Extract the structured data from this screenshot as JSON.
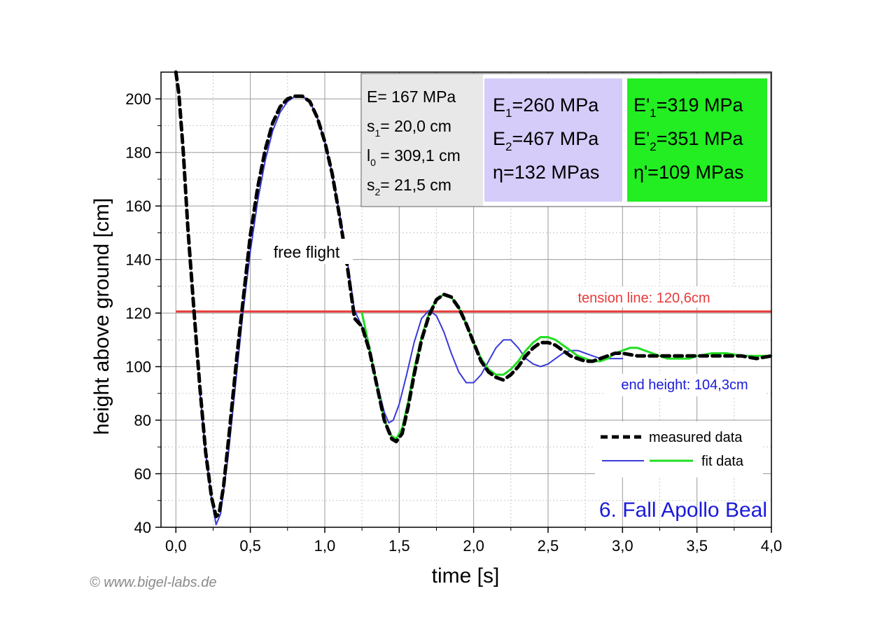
{
  "chart_data": {
    "type": "line",
    "title": "6. Fall Apollo Beal",
    "xlabel": "time [s]",
    "ylabel": "height above ground [cm]",
    "xlim": [
      -0.1,
      4.0
    ],
    "ylim": [
      40,
      210
    ],
    "grid": true,
    "x_ticks": [
      "0,0",
      "0,5",
      "1,0",
      "1,5",
      "2,0",
      "2,5",
      "3,0",
      "3,5",
      "4,0"
    ],
    "y_ticks": [
      "40",
      "60",
      "80",
      "100",
      "120",
      "140",
      "160",
      "180",
      "200"
    ],
    "tension_line": {
      "label": "tension line: 120,6cm",
      "value": 120.6,
      "color": "#e83a3a"
    },
    "end_height": {
      "label": "end height: 104,3cm",
      "value": 104.3,
      "color": "#1a1adb"
    },
    "free_flight_label": "free flight",
    "series": [
      {
        "name": "measured data",
        "style": "dashed",
        "color": "#000000",
        "points": [
          [
            0.0,
            210
          ],
          [
            0.02,
            202
          ],
          [
            0.05,
            180
          ],
          [
            0.08,
            152
          ],
          [
            0.12,
            122
          ],
          [
            0.16,
            93
          ],
          [
            0.2,
            68
          ],
          [
            0.24,
            51
          ],
          [
            0.27,
            44
          ],
          [
            0.29,
            45
          ],
          [
            0.32,
            55
          ],
          [
            0.36,
            76
          ],
          [
            0.41,
            104
          ],
          [
            0.46,
            129
          ],
          [
            0.5,
            149
          ],
          [
            0.55,
            167
          ],
          [
            0.6,
            181
          ],
          [
            0.65,
            191
          ],
          [
            0.7,
            197
          ],
          [
            0.75,
            200
          ],
          [
            0.8,
            201
          ],
          [
            0.85,
            201
          ],
          [
            0.9,
            199
          ],
          [
            0.95,
            193
          ],
          [
            1.0,
            184
          ],
          [
            1.05,
            172
          ],
          [
            1.1,
            156
          ],
          [
            1.15,
            138
          ],
          [
            1.2,
            118
          ],
          [
            1.25,
            115
          ],
          [
            1.3,
            106
          ],
          [
            1.35,
            93
          ],
          [
            1.4,
            80
          ],
          [
            1.45,
            73
          ],
          [
            1.48,
            72
          ],
          [
            1.52,
            75
          ],
          [
            1.56,
            85
          ],
          [
            1.6,
            97
          ],
          [
            1.65,
            110
          ],
          [
            1.7,
            119
          ],
          [
            1.75,
            125
          ],
          [
            1.8,
            127
          ],
          [
            1.85,
            126
          ],
          [
            1.9,
            122
          ],
          [
            1.95,
            116
          ],
          [
            2.0,
            109
          ],
          [
            2.05,
            102
          ],
          [
            2.1,
            98
          ],
          [
            2.15,
            96
          ],
          [
            2.2,
            95
          ],
          [
            2.25,
            97
          ],
          [
            2.3,
            100
          ],
          [
            2.35,
            104
          ],
          [
            2.4,
            107
          ],
          [
            2.45,
            109
          ],
          [
            2.5,
            109
          ],
          [
            2.55,
            108
          ],
          [
            2.6,
            106
          ],
          [
            2.65,
            104
          ],
          [
            2.7,
            103
          ],
          [
            2.75,
            102
          ],
          [
            2.8,
            102
          ],
          [
            2.85,
            103
          ],
          [
            2.9,
            104
          ],
          [
            2.95,
            105
          ],
          [
            3.0,
            105
          ],
          [
            3.1,
            104
          ],
          [
            3.2,
            104
          ],
          [
            3.3,
            104
          ],
          [
            3.4,
            104
          ],
          [
            3.5,
            104
          ],
          [
            3.6,
            104
          ],
          [
            3.7,
            104
          ],
          [
            3.8,
            104
          ],
          [
            3.9,
            103
          ],
          [
            4.0,
            104
          ]
        ]
      },
      {
        "name": "fit data",
        "style": "solid",
        "color": "#3a3adb",
        "points": [
          [
            0.16,
            91
          ],
          [
            0.2,
            68
          ],
          [
            0.24,
            50
          ],
          [
            0.27,
            41
          ],
          [
            0.3,
            45
          ],
          [
            0.35,
            66
          ],
          [
            0.4,
            93
          ],
          [
            0.45,
            120
          ],
          [
            0.5,
            143
          ],
          [
            0.55,
            162
          ],
          [
            0.6,
            177
          ],
          [
            0.65,
            188
          ],
          [
            0.7,
            195
          ],
          [
            0.75,
            199
          ],
          [
            0.8,
            201
          ],
          [
            0.85,
            201
          ],
          [
            0.9,
            199
          ],
          [
            0.95,
            193
          ],
          [
            1.0,
            184
          ],
          [
            1.05,
            172
          ],
          [
            1.1,
            157
          ],
          [
            1.15,
            140
          ],
          [
            1.2,
            121
          ],
          [
            1.25,
            115
          ],
          [
            1.3,
            106
          ],
          [
            1.35,
            94
          ],
          [
            1.4,
            83
          ],
          [
            1.43,
            79
          ],
          [
            1.46,
            80
          ],
          [
            1.5,
            86
          ],
          [
            1.55,
            97
          ],
          [
            1.6,
            109
          ],
          [
            1.65,
            118
          ],
          [
            1.7,
            121
          ],
          [
            1.75,
            119
          ],
          [
            1.8,
            113
          ],
          [
            1.85,
            105
          ],
          [
            1.9,
            98
          ],
          [
            1.95,
            94
          ],
          [
            2.0,
            94
          ],
          [
            2.05,
            97
          ],
          [
            2.1,
            102
          ],
          [
            2.15,
            107
          ],
          [
            2.2,
            110
          ],
          [
            2.25,
            110
          ],
          [
            2.3,
            107
          ],
          [
            2.35,
            103
          ],
          [
            2.4,
            101
          ],
          [
            2.45,
            100
          ],
          [
            2.5,
            101
          ],
          [
            2.55,
            103
          ],
          [
            2.6,
            105
          ],
          [
            2.65,
            106
          ],
          [
            2.7,
            106
          ],
          [
            2.75,
            105
          ],
          [
            2.8,
            104
          ],
          [
            2.85,
            103
          ],
          [
            2.9,
            103
          ],
          [
            2.95,
            103
          ],
          [
            3.0,
            103
          ]
        ]
      },
      {
        "name": "fit data",
        "style": "solid",
        "color": "#22dd22",
        "points": [
          [
            1.25,
            120
          ],
          [
            1.3,
            107
          ],
          [
            1.35,
            93
          ],
          [
            1.4,
            80
          ],
          [
            1.45,
            74
          ],
          [
            1.48,
            73
          ],
          [
            1.52,
            77
          ],
          [
            1.56,
            87
          ],
          [
            1.6,
            99
          ],
          [
            1.65,
            111
          ],
          [
            1.7,
            120
          ],
          [
            1.75,
            125
          ],
          [
            1.8,
            127
          ],
          [
            1.85,
            126
          ],
          [
            1.9,
            122
          ],
          [
            1.95,
            116
          ],
          [
            2.0,
            109
          ],
          [
            2.05,
            103
          ],
          [
            2.1,
            99
          ],
          [
            2.15,
            97
          ],
          [
            2.2,
            97
          ],
          [
            2.25,
            99
          ],
          [
            2.3,
            102
          ],
          [
            2.35,
            106
          ],
          [
            2.4,
            109
          ],
          [
            2.45,
            111
          ],
          [
            2.5,
            111
          ],
          [
            2.55,
            110
          ],
          [
            2.6,
            108
          ],
          [
            2.65,
            106
          ],
          [
            2.7,
            104
          ],
          [
            2.75,
            103
          ],
          [
            2.8,
            102
          ],
          [
            2.85,
            102
          ],
          [
            2.9,
            103
          ],
          [
            2.95,
            105
          ],
          [
            3.0,
            106
          ],
          [
            3.05,
            107
          ],
          [
            3.1,
            107
          ],
          [
            3.15,
            106
          ],
          [
            3.2,
            105
          ],
          [
            3.25,
            104
          ],
          [
            3.3,
            103
          ],
          [
            3.35,
            103
          ],
          [
            3.4,
            103
          ],
          [
            3.45,
            103
          ],
          [
            3.5,
            104
          ],
          [
            3.6,
            105
          ],
          [
            3.7,
            105
          ],
          [
            3.8,
            104
          ],
          [
            3.9,
            104
          ],
          [
            4.0,
            104
          ]
        ]
      }
    ],
    "legend": [
      {
        "label": "measured data"
      },
      {
        "label": "fit data"
      }
    ]
  },
  "params_box": {
    "gray": [
      "E= 167 MPa",
      "s|1|=   20,0 cm",
      "l|0| = 309,1 cm",
      "s|2|=   21,5 cm"
    ],
    "purple": [
      "E|1|=260 MPa",
      "E|2|=467 MPa",
      " η=132 MPas"
    ],
    "green": [
      "E'|1|=319 MPa",
      "E'|2|=351 MPa",
      " η'=109 MPas"
    ],
    "colors": {
      "gray": "#e8e8e8",
      "purple": "#d6ccfa",
      "green": "#22ee22"
    }
  },
  "credit": "© www.bigel-labs.de"
}
